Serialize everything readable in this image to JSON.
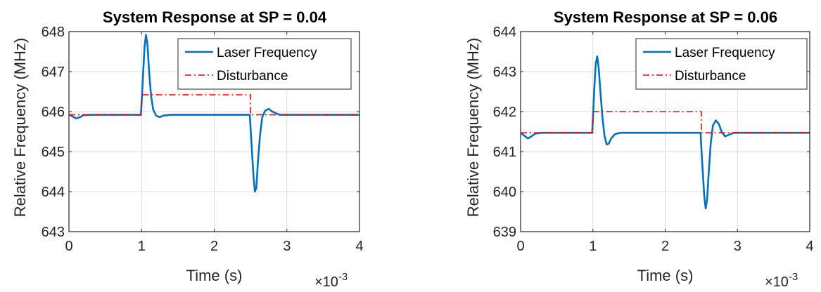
{
  "chart_data": [
    {
      "type": "line",
      "title": "System Response at SP = 0.04",
      "xlabel": "Time (s)",
      "ylabel": "Relative Frequency (MHz)",
      "x_multiplier": "×10",
      "x_multiplier_exp": "-3",
      "xlim": [
        0,
        4
      ],
      "ylim": [
        643,
        648
      ],
      "xticks": [
        0,
        1,
        2,
        3,
        4
      ],
      "yticks": [
        643,
        644,
        645,
        646,
        647,
        648
      ],
      "grid": true,
      "legend_position": "top-right",
      "series": [
        {
          "name": "Laser Frequency",
          "color": "#0072BD",
          "style": "solid",
          "x": [
            0,
            0.05,
            0.1,
            0.15,
            0.2,
            0.3,
            0.5,
            0.8,
            0.99,
            1.0,
            1.02,
            1.04,
            1.06,
            1.08,
            1.1,
            1.13,
            1.16,
            1.2,
            1.25,
            1.3,
            1.4,
            1.6,
            2.0,
            2.4,
            2.49,
            2.5,
            2.52,
            2.54,
            2.56,
            2.58,
            2.6,
            2.63,
            2.66,
            2.7,
            2.75,
            2.8,
            2.9,
            3.0,
            3.5,
            4.0
          ],
          "y": [
            645.93,
            645.88,
            645.83,
            645.86,
            645.91,
            645.92,
            645.92,
            645.92,
            645.92,
            646.2,
            646.9,
            647.6,
            647.92,
            647.7,
            647.1,
            646.4,
            646.05,
            645.9,
            645.86,
            645.9,
            645.92,
            645.92,
            645.92,
            645.92,
            645.92,
            645.6,
            645.0,
            644.4,
            644.0,
            644.1,
            644.7,
            645.4,
            645.85,
            646.02,
            646.07,
            646.0,
            645.92,
            645.92,
            645.92,
            645.92
          ]
        },
        {
          "name": "Disturbance",
          "color": "#FF0000",
          "style": "dashdot",
          "x": [
            0,
            1.0,
            1.0,
            2.5,
            2.5,
            4.0
          ],
          "y": [
            645.92,
            645.92,
            646.42,
            646.42,
            645.92,
            645.92
          ]
        }
      ]
    },
    {
      "type": "line",
      "title": "System Response at SP = 0.06",
      "xlabel": "Time (s)",
      "ylabel": "Relative Frequency (MHz)",
      "x_multiplier": "×10",
      "x_multiplier_exp": "-3",
      "xlim": [
        0,
        4
      ],
      "ylim": [
        639,
        644
      ],
      "xticks": [
        0,
        1,
        2,
        3,
        4
      ],
      "yticks": [
        639,
        640,
        641,
        642,
        643,
        644
      ],
      "grid": true,
      "legend_position": "top-right",
      "series": [
        {
          "name": "Laser Frequency",
          "color": "#0072BD",
          "style": "solid",
          "x": [
            0,
            0.05,
            0.1,
            0.15,
            0.2,
            0.3,
            0.5,
            0.8,
            0.99,
            1.0,
            1.02,
            1.04,
            1.06,
            1.08,
            1.1,
            1.13,
            1.16,
            1.19,
            1.22,
            1.25,
            1.3,
            1.35,
            1.4,
            1.5,
            1.7,
            2.0,
            2.49,
            2.5,
            2.52,
            2.54,
            2.56,
            2.58,
            2.6,
            2.63,
            2.66,
            2.7,
            2.74,
            2.78,
            2.83,
            2.88,
            2.95,
            3.05,
            3.5,
            4.0
          ],
          "y": [
            641.47,
            641.4,
            641.33,
            641.38,
            641.45,
            641.47,
            641.47,
            641.47,
            641.47,
            641.8,
            642.6,
            643.2,
            643.38,
            643.1,
            642.6,
            641.9,
            641.4,
            641.18,
            641.2,
            641.32,
            641.43,
            641.46,
            641.47,
            641.47,
            641.47,
            641.47,
            641.47,
            641.1,
            640.5,
            639.9,
            639.58,
            639.8,
            640.4,
            641.2,
            641.65,
            641.78,
            641.7,
            641.5,
            641.38,
            641.42,
            641.47,
            641.47,
            641.47,
            641.47
          ]
        },
        {
          "name": "Disturbance",
          "color": "#FF0000",
          "style": "dashdot",
          "x": [
            0,
            1.0,
            1.0,
            2.5,
            2.5,
            4.0
          ],
          "y": [
            641.47,
            641.47,
            642.0,
            642.0,
            641.47,
            641.47
          ]
        }
      ]
    }
  ]
}
